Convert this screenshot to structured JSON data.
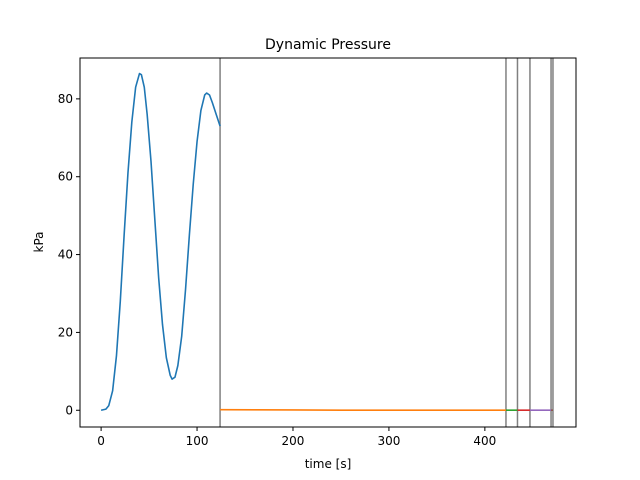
{
  "chart_data": {
    "type": "line",
    "title": "Dynamic Pressure",
    "xlabel": "time [s]",
    "ylabel": "kPa",
    "xlim": [
      -22,
      495
    ],
    "ylim": [
      -4.3,
      90.5
    ],
    "xticks": [
      0,
      100,
      200,
      300,
      400
    ],
    "yticks": [
      0,
      20,
      40,
      60,
      80
    ],
    "grid": false,
    "legend": "none",
    "vlines": [
      124,
      422,
      434,
      447,
      469,
      471
    ],
    "vline_color": "#808080",
    "series": [
      {
        "color": "#1f77b4",
        "points": [
          [
            0,
            0
          ],
          [
            5,
            0.3
          ],
          [
            8,
            1.2
          ],
          [
            12,
            5
          ],
          [
            16,
            14
          ],
          [
            20,
            28
          ],
          [
            24,
            45
          ],
          [
            28,
            61
          ],
          [
            32,
            74
          ],
          [
            36,
            83
          ],
          [
            40,
            86.5
          ],
          [
            42,
            86.2
          ],
          [
            45,
            83
          ],
          [
            48,
            76
          ],
          [
            52,
            64
          ],
          [
            56,
            49
          ],
          [
            60,
            34
          ],
          [
            64,
            22
          ],
          [
            68,
            13.5
          ],
          [
            72,
            9
          ],
          [
            74,
            8
          ],
          [
            77,
            8.5
          ],
          [
            80,
            11.5
          ],
          [
            84,
            19
          ],
          [
            88,
            31
          ],
          [
            92,
            45
          ],
          [
            96,
            58
          ],
          [
            100,
            69
          ],
          [
            104,
            77
          ],
          [
            108,
            81
          ],
          [
            110,
            81.5
          ],
          [
            113,
            81
          ],
          [
            116,
            79
          ],
          [
            120,
            76
          ],
          [
            124,
            73
          ]
        ]
      },
      {
        "color": "#ff7f0e",
        "points": [
          [
            124,
            0.15
          ],
          [
            160,
            0.12
          ],
          [
            200,
            0.08
          ],
          [
            250,
            0.03
          ],
          [
            300,
            0.01
          ],
          [
            350,
            0.01
          ],
          [
            400,
            0.01
          ],
          [
            422,
            0.02
          ]
        ]
      },
      {
        "color": "#2ca02c",
        "points": [
          [
            422,
            0.02
          ],
          [
            434,
            0.02
          ]
        ]
      },
      {
        "color": "#d62728",
        "points": [
          [
            434,
            0.02
          ],
          [
            447,
            0.02
          ]
        ]
      },
      {
        "color": "#9467bd",
        "points": [
          [
            447,
            0.02
          ],
          [
            469,
            0.02
          ]
        ]
      },
      {
        "color": "#8c564b",
        "points": [
          [
            469,
            0.02
          ],
          [
            471,
            0.02
          ]
        ]
      }
    ]
  }
}
